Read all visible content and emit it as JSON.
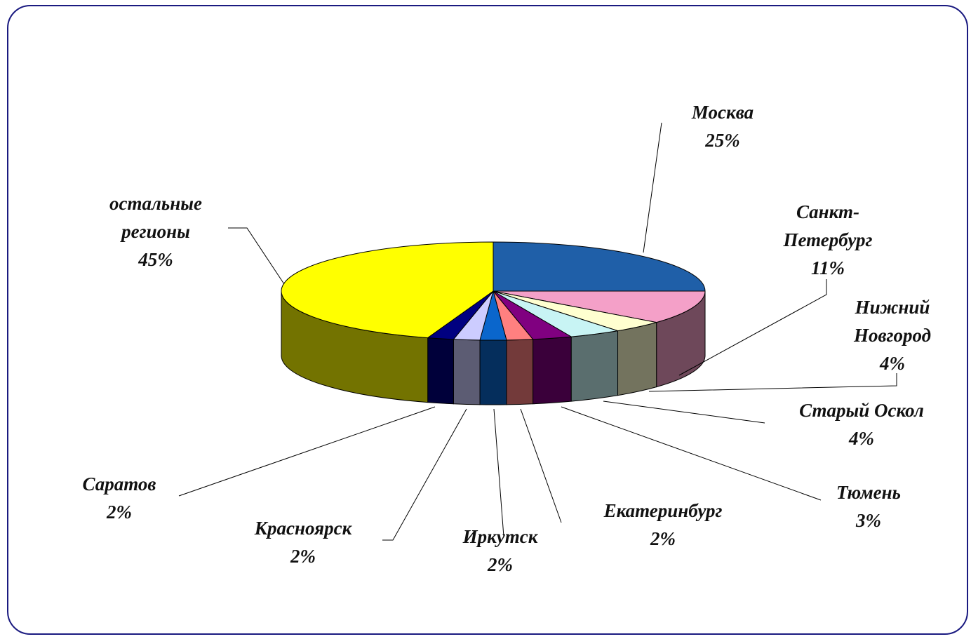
{
  "chart_data": {
    "type": "pie3d",
    "categories": [
      "Москва",
      "Санкт-Петербург",
      "Нижний Новгород",
      "Старый Оскол",
      "Тюмень",
      "Екатеринбург",
      "Иркутск",
      "Красноярск",
      "Саратов",
      "остальные регионы"
    ],
    "values": [
      25,
      11,
      4,
      4,
      3,
      2,
      2,
      2,
      2,
      45
    ],
    "value_labels": [
      "25%",
      "11%",
      "4%",
      "4%",
      "3%",
      "2%",
      "2%",
      "2%",
      "2%",
      "45%"
    ],
    "colors": [
      "#1f5fa8",
      "#f4a0c8",
      "#ffffd0",
      "#c8f4f4",
      "#800080",
      "#ff8080",
      "#0a66cc",
      "#ccccff",
      "#000080",
      "#ffff00"
    ]
  }
}
